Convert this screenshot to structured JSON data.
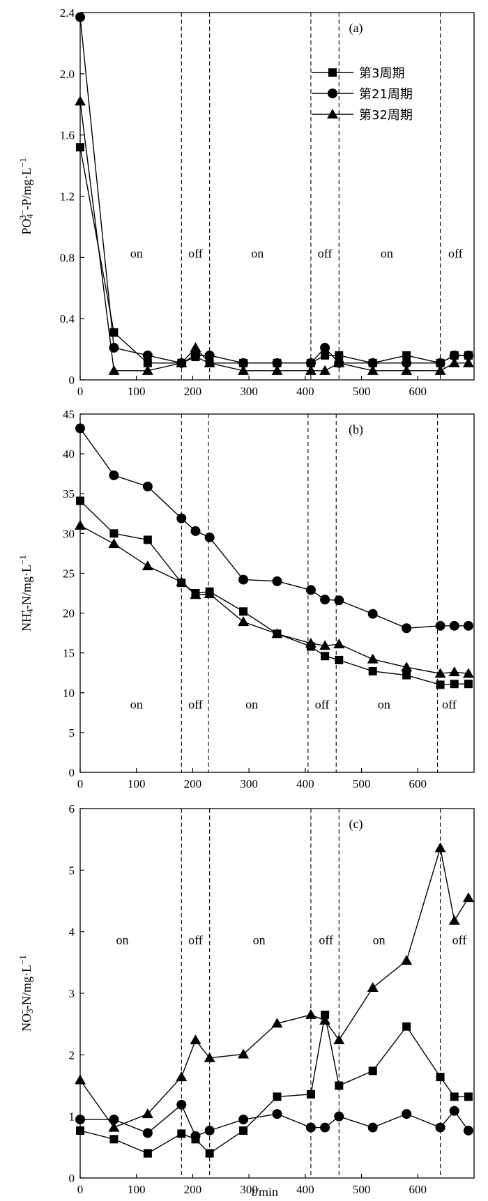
{
  "shared_xlabel": {
    "italic": "t",
    "rest": "/min"
  },
  "chart_data": [
    {
      "type": "line",
      "panel_label": "(a)",
      "ylabel": "PO4 3−-P/mg·L−1",
      "ylabel_parts": {
        "main": "PO",
        "sub": "4",
        "sup": "3−",
        "tail": "-P/mg·L",
        "unit_sup": "−1"
      },
      "xlim": [
        0,
        700
      ],
      "ylim": [
        0,
        2.4
      ],
      "xticks": [
        0,
        100,
        200,
        300,
        400,
        500,
        600
      ],
      "yticks": [
        0,
        0.4,
        0.8,
        1.2,
        1.6,
        2.0,
        2.4
      ],
      "ytick_labels": [
        "0",
        "0.4",
        "0.8",
        "1.2",
        "1.6",
        "2.0",
        "2.4"
      ],
      "vlines": [
        180,
        230,
        410,
        460,
        640
      ],
      "phase_labels": [
        {
          "text": "on",
          "x": 100,
          "y": 0.8
        },
        {
          "text": "off",
          "x": 205,
          "y": 0.8
        },
        {
          "text": "on",
          "x": 315,
          "y": 0.8
        },
        {
          "text": "off",
          "x": 435,
          "y": 0.8
        },
        {
          "text": "on",
          "x": 545,
          "y": 0.8
        },
        {
          "text": "off",
          "x": 667,
          "y": 0.8
        }
      ],
      "legend": {
        "position": "top-right"
      },
      "series": [
        {
          "name": "第3周期",
          "marker": "square",
          "x": [
            0,
            60,
            120,
            180,
            205,
            230,
            290,
            350,
            410,
            435,
            460,
            520,
            580,
            640,
            665,
            690
          ],
          "y": [
            1.52,
            0.31,
            0.11,
            0.11,
            0.15,
            0.11,
            0.11,
            0.11,
            0.11,
            0.16,
            0.16,
            0.11,
            0.16,
            0.11,
            0.16,
            0.16
          ]
        },
        {
          "name": "第21周期",
          "marker": "circle",
          "x": [
            0,
            60,
            120,
            180,
            205,
            230,
            290,
            350,
            410,
            435,
            460,
            520,
            580,
            640,
            665,
            690
          ],
          "y": [
            2.37,
            0.21,
            0.16,
            0.11,
            0.16,
            0.16,
            0.11,
            0.11,
            0.11,
            0.21,
            0.11,
            0.11,
            0.11,
            0.11,
            0.16,
            0.16
          ]
        },
        {
          "name": "第32周期",
          "marker": "triangle",
          "x": [
            0,
            60,
            120,
            180,
            205,
            230,
            290,
            350,
            410,
            435,
            460,
            520,
            580,
            640,
            665,
            690
          ],
          "y": [
            1.82,
            0.06,
            0.06,
            0.11,
            0.21,
            0.11,
            0.06,
            0.06,
            0.06,
            0.06,
            0.11,
            0.06,
            0.06,
            0.06,
            0.11,
            0.11
          ]
        }
      ]
    },
    {
      "type": "line",
      "panel_label": "(b)",
      "ylabel": "NH4+-N/mg·L−1",
      "ylabel_parts": {
        "main": "NH",
        "sub": "4",
        "sup": "+",
        "tail": "-N/mg·L",
        "unit_sup": "−1"
      },
      "xlim": [
        0,
        700
      ],
      "ylim": [
        0,
        45
      ],
      "xticks": [
        0,
        100,
        200,
        300,
        400,
        500,
        600
      ],
      "yticks": [
        0,
        5,
        10,
        15,
        20,
        25,
        30,
        35,
        40,
        45
      ],
      "ytick_labels": [
        "0",
        "5",
        "10",
        "15",
        "20",
        "25",
        "30",
        "35",
        "40",
        "45"
      ],
      "vlines": [
        180,
        228,
        405,
        455,
        635
      ],
      "phase_labels": [
        {
          "text": "on",
          "x": 100,
          "y": 8
        },
        {
          "text": "off",
          "x": 205,
          "y": 8
        },
        {
          "text": "on",
          "x": 305,
          "y": 8
        },
        {
          "text": "off",
          "x": 430,
          "y": 8
        },
        {
          "text": "on",
          "x": 540,
          "y": 8
        },
        {
          "text": "off",
          "x": 656,
          "y": 8
        }
      ],
      "series": [
        {
          "name": "第3周期",
          "marker": "square",
          "x": [
            0,
            60,
            120,
            180,
            205,
            230,
            290,
            350,
            410,
            435,
            460,
            520,
            580,
            640,
            665,
            690
          ],
          "y": [
            34.1,
            30.0,
            29.2,
            23.8,
            22.5,
            22.7,
            20.2,
            17.4,
            15.8,
            14.6,
            14.1,
            12.7,
            12.2,
            11.0,
            11.1,
            11.1
          ]
        },
        {
          "name": "第21周期",
          "marker": "circle",
          "x": [
            0,
            60,
            120,
            180,
            205,
            230,
            290,
            350,
            410,
            435,
            460,
            520,
            580,
            640,
            665,
            690
          ],
          "y": [
            43.2,
            37.3,
            35.9,
            31.9,
            30.3,
            29.5,
            24.2,
            24.0,
            22.9,
            21.7,
            21.6,
            19.9,
            18.1,
            18.4,
            18.4,
            18.4
          ]
        },
        {
          "name": "第32周期",
          "marker": "triangle",
          "x": [
            0,
            60,
            120,
            180,
            205,
            230,
            290,
            350,
            410,
            435,
            460,
            520,
            580,
            640,
            665,
            690
          ],
          "y": [
            31.0,
            28.7,
            25.9,
            23.9,
            22.3,
            22.4,
            18.9,
            17.4,
            16.2,
            15.9,
            16.1,
            14.2,
            13.2,
            12.4,
            12.6,
            12.4
          ]
        }
      ]
    },
    {
      "type": "line",
      "panel_label": "(c)",
      "ylabel": "NO3−-N/mg·L−1",
      "ylabel_parts": {
        "main": "NO",
        "sub": "3",
        "sup": "−",
        "tail": "-N/mg·L",
        "unit_sup": "−1"
      },
      "xlim": [
        0,
        700
      ],
      "ylim": [
        0,
        6
      ],
      "xticks": [
        0,
        100,
        200,
        300,
        400,
        500,
        600
      ],
      "yticks": [
        0,
        1,
        2,
        3,
        4,
        5,
        6
      ],
      "ytick_labels": [
        "0",
        "1",
        "2",
        "3",
        "4",
        "5",
        "6"
      ],
      "vlines": [
        180,
        230,
        410,
        460,
        640
      ],
      "phase_labels": [
        {
          "text": "on",
          "x": 75,
          "y": 3.8
        },
        {
          "text": "off",
          "x": 205,
          "y": 3.8
        },
        {
          "text": "on",
          "x": 318,
          "y": 3.8
        },
        {
          "text": "off",
          "x": 437,
          "y": 3.8
        },
        {
          "text": "on",
          "x": 531,
          "y": 3.8
        },
        {
          "text": "off",
          "x": 674,
          "y": 3.8
        }
      ],
      "series": [
        {
          "name": "第3周期",
          "marker": "square",
          "x": [
            0,
            60,
            120,
            180,
            205,
            230,
            290,
            350,
            410,
            435,
            460,
            520,
            580,
            640,
            665,
            690
          ],
          "y": [
            0.77,
            0.63,
            0.4,
            0.72,
            0.63,
            0.4,
            0.77,
            1.32,
            1.36,
            2.65,
            1.5,
            1.74,
            2.46,
            1.64,
            1.32,
            1.32
          ]
        },
        {
          "name": "第21周期",
          "marker": "circle",
          "x": [
            0,
            60,
            120,
            180,
            205,
            230,
            290,
            350,
            410,
            435,
            460,
            520,
            580,
            640,
            665,
            690
          ],
          "y": [
            0.95,
            0.95,
            0.73,
            1.19,
            0.68,
            0.77,
            0.95,
            1.04,
            0.82,
            0.82,
            1.0,
            0.82,
            1.04,
            0.82,
            1.09,
            0.77
          ]
        },
        {
          "name": "第32周期",
          "marker": "triangle",
          "x": [
            0,
            60,
            120,
            180,
            205,
            230,
            290,
            350,
            410,
            435,
            460,
            520,
            580,
            640,
            665,
            690
          ],
          "y": [
            1.59,
            0.82,
            1.04,
            1.64,
            2.24,
            1.95,
            2.01,
            2.51,
            2.65,
            2.56,
            2.24,
            3.09,
            3.53,
            5.36,
            4.18,
            4.55
          ]
        }
      ]
    }
  ]
}
